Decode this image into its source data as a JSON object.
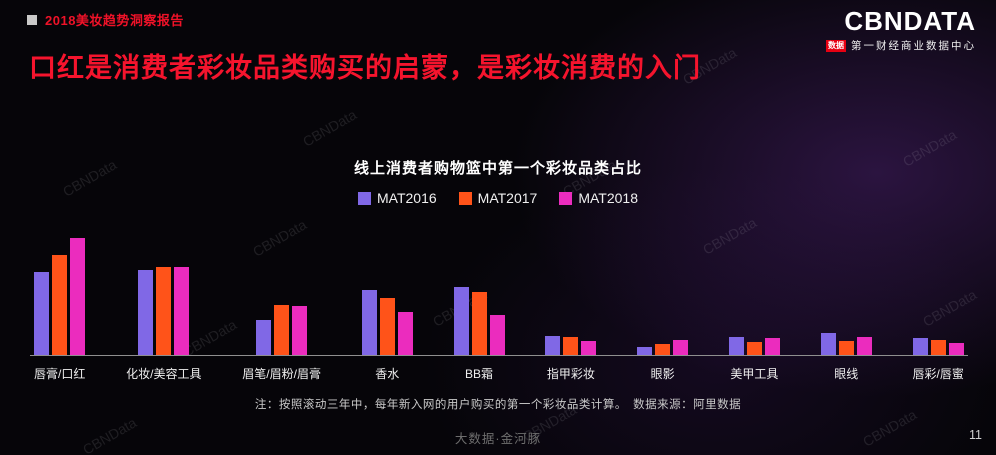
{
  "header": {
    "report_title": "2018美妆趋势洞察报告",
    "logo": {
      "brand": "CBNDATA",
      "badge": "数据",
      "subtitle": "第一财经商业数据中心"
    }
  },
  "page_title": "口红是消费者彩妆品类购买的启蒙，是彩妆消费的入门",
  "chart_data": {
    "type": "bar",
    "title": "线上消费者购物篮中第一个彩妆品类占比",
    "categories": [
      "唇膏/口红",
      "化妆/美容工具",
      "眉笔/眉粉/眉膏",
      "香水",
      "BB霜",
      "指甲彩妆",
      "眼影",
      "美甲工具",
      "眼线",
      "唇彩/唇蜜"
    ],
    "series": [
      {
        "name": "MAT2016",
        "color": "#8068e6",
        "values": [
          19.2,
          19.6,
          8.1,
          15.0,
          15.7,
          4.4,
          1.8,
          4.2,
          5.1,
          3.9
        ]
      },
      {
        "name": "MAT2017",
        "color": "#ff5319",
        "values": [
          23.1,
          20.3,
          11.5,
          13.2,
          14.5,
          4.2,
          2.5,
          3.0,
          3.2,
          3.5
        ]
      },
      {
        "name": "MAT2018",
        "color": "#eb2cbe",
        "values": [
          27.0,
          20.3,
          11.3,
          9.9,
          9.2,
          3.2,
          3.5,
          3.9,
          4.2,
          2.8
        ]
      }
    ],
    "ylim": [
      0,
      30
    ],
    "xlabel": "",
    "ylabel": "",
    "grid": false,
    "legend_position": "top",
    "y_axis_visible": false
  },
  "footnote": "注：按照滚动三年中，每年新入网的用户购买的第一个彩妆品类计算。　数据来源：阿里数据",
  "footer": {
    "watermark_center": "大数据·金河豚",
    "page_number": "11"
  },
  "watermark_text": "CBNData",
  "colors": {
    "title_red": "#f5142d",
    "brand_red": "#e60012",
    "axis_gray": "#8f8f8f"
  }
}
